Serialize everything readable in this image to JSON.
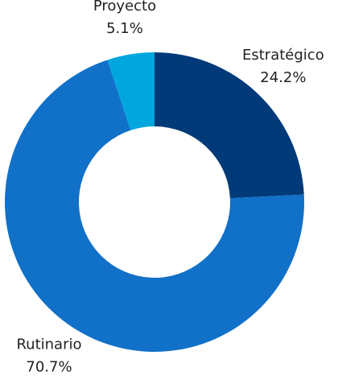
{
  "chart_data": {
    "type": "donut",
    "categories": [
      "Estratégico",
      "Rutinario",
      "Proyecto"
    ],
    "values": [
      24.2,
      70.7,
      5.1
    ],
    "value_labels": [
      "24.2%",
      "70.7%",
      "5.1%"
    ],
    "colors": [
      "#003a78",
      "#1170c8",
      "#00a7de"
    ]
  }
}
